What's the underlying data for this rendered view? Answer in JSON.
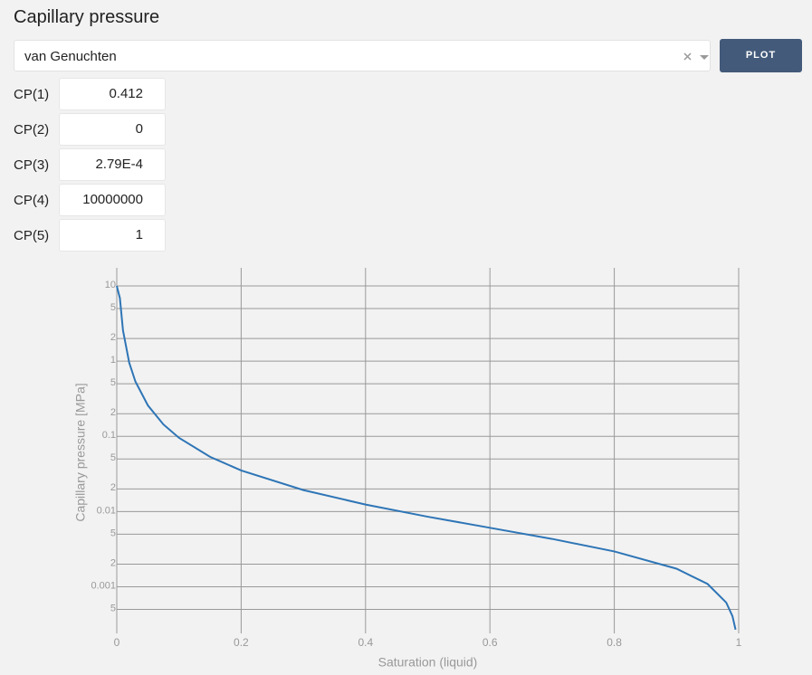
{
  "header": {
    "title": "Capillary pressure"
  },
  "controls": {
    "model": "van Genuchten",
    "button": "PLOT"
  },
  "params": [
    {
      "label": "CP(1)",
      "value": "0.412"
    },
    {
      "label": "CP(2)",
      "value": "0"
    },
    {
      "label": "CP(3)",
      "value": "2.79E-4"
    },
    {
      "label": "CP(4)",
      "value": "10000000"
    },
    {
      "label": "CP(5)",
      "value": "1"
    }
  ],
  "chart_data": {
    "type": "line",
    "x_label": "Saturation (liquid)",
    "y_label": "Capillary pressure [MPa]",
    "x": [
      0,
      0.005,
      0.01,
      0.02,
      0.03,
      0.05,
      0.075,
      0.1,
      0.15,
      0.2,
      0.3,
      0.4,
      0.5,
      0.6,
      0.7,
      0.8,
      0.9,
      0.95,
      0.98,
      0.99,
      0.995
    ],
    "values": [
      10,
      6.89,
      2.56,
      0.953,
      0.534,
      0.258,
      0.144,
      0.0957,
      0.0534,
      0.0352,
      0.0193,
      0.0124,
      0.00854,
      0.00608,
      0.00433,
      0.00295,
      0.00174,
      0.00109,
      0.000617,
      0.000407,
      0.000269
    ],
    "color": "#2e75b6",
    "yscale": "log",
    "grid": true,
    "xlim": [
      0,
      1
    ],
    "xticks": [
      0,
      0.2,
      0.4,
      0.6,
      0.8,
      1
    ],
    "ylim": [
      0.00024,
      17.4
    ],
    "yticks": [
      10,
      5,
      2,
      1,
      {
        "value": 0.5,
        "label": "5"
      },
      {
        "value": 0.2,
        "label": "2"
      },
      0.1,
      {
        "value": 0.05,
        "label": "5"
      },
      {
        "value": 0.02,
        "label": "2"
      },
      0.01,
      {
        "value": 0.005,
        "label": "5"
      },
      {
        "value": 0.002,
        "label": "2"
      },
      0.001,
      {
        "value": 0.0005,
        "label": "5"
      }
    ]
  }
}
